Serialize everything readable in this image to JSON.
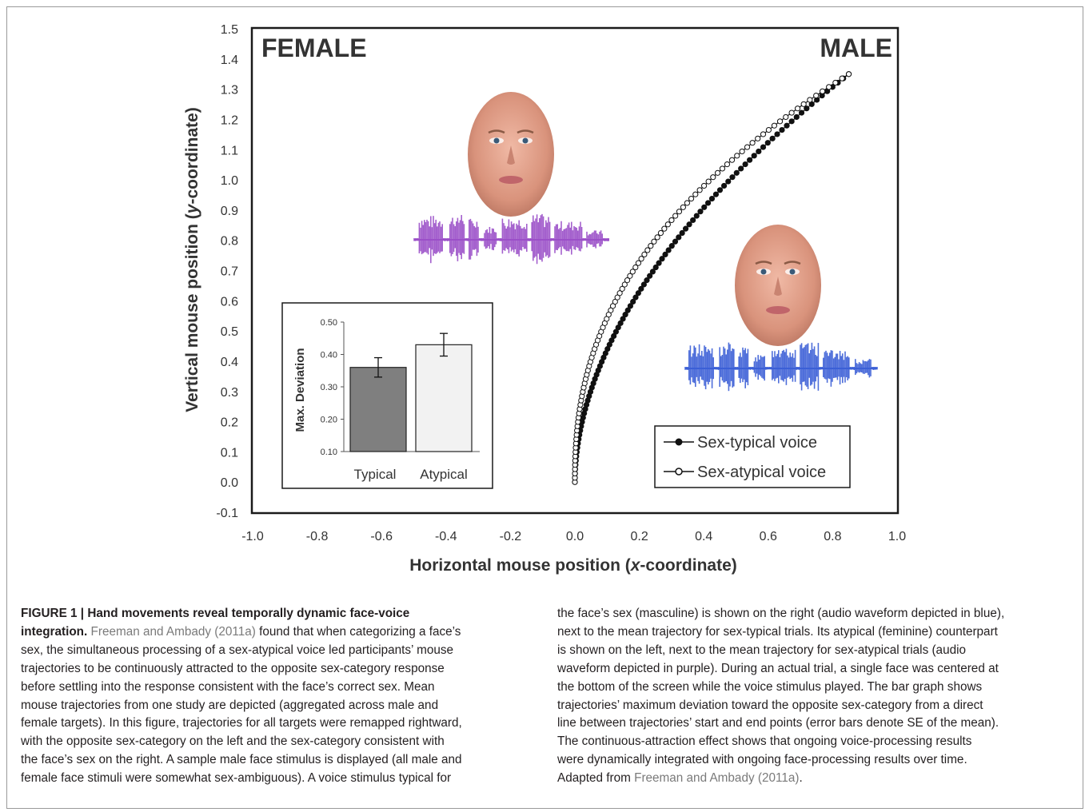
{
  "figure": {
    "label_female": "FEMALE",
    "label_male": "MALE",
    "voice_colors": {
      "female": "#9b4fc8",
      "male": "#3b5fd6"
    }
  },
  "chart_data": [
    {
      "type": "line",
      "xlabel": "Horizontal mouse position (x-coordinate)",
      "ylabel": "Vertical mouse position (y-coordinate)",
      "xlim": [
        -1.0,
        1.0
      ],
      "ylim": [
        -0.1,
        1.5
      ],
      "x_ticks": [
        "-1.0",
        "-0.8",
        "-0.6",
        "-0.4",
        "-0.2",
        "0.0",
        "0.2",
        "0.4",
        "0.6",
        "0.8",
        "1.0"
      ],
      "y_ticks": [
        "1.5",
        "1.4",
        "1.3",
        "1.2",
        "1.1",
        "1.0",
        "0.9",
        "0.8",
        "0.7",
        "0.6",
        "0.5",
        "0.4",
        "0.3",
        "0.2",
        "0.1",
        "0.0",
        "-0.1"
      ],
      "grid": false,
      "legend_position": "bottom-right",
      "series": [
        {
          "name": "Sex-typical voice",
          "marker": "filled-circle",
          "end": [
            0.85,
            1.35
          ],
          "shape_exponent": 1.9
        },
        {
          "name": "Sex-atypical voice",
          "marker": "open-circle",
          "end": [
            0.85,
            1.35
          ],
          "shape_exponent": 2.35
        }
      ]
    },
    {
      "type": "bar",
      "categories": [
        "Typical",
        "Atypical"
      ],
      "values": [
        0.36,
        0.43
      ],
      "errors": [
        0.03,
        0.035
      ],
      "ylabel": "Max. Deviation",
      "ylim": [
        0.1,
        0.5
      ],
      "y_ticks": [
        "0.50",
        "0.40",
        "0.30",
        "0.20",
        "0.10"
      ],
      "colors": [
        "#7f7f7f",
        "#f2f2f2"
      ]
    }
  ],
  "caption": {
    "title": "FIGURE 1 | Hand movements reveal temporally dynamic face-voice integration.",
    "left_lines": [
      [
        {
          "r": false,
          "t": "Freeman and Ambady (2011a)"
        },
        {
          "t": " found that when categorizing a face’s"
        }
      ],
      [
        {
          "t": "sex, the simultaneous processing of a sex-atypical voice led participants’ mouse"
        }
      ],
      [
        {
          "t": "trajectories to be continuously attracted to the opposite sex-category response"
        }
      ],
      [
        {
          "t": "before settling into the response consistent with the face’s correct sex. Mean"
        }
      ],
      [
        {
          "t": "mouse trajectories from one study are depicted (aggregated across male and"
        }
      ],
      [
        {
          "t": "female targets). In this figure, trajectories for all targets were remapped rightward,"
        }
      ],
      [
        {
          "t": "with the opposite sex-category on the left and the sex-category consistent with"
        }
      ],
      [
        {
          "t": "the face’s sex on the right. A sample male face stimulus is displayed (all male and"
        }
      ],
      [
        {
          "t": "female face stimuli were somewhat sex-ambiguous). A voice stimulus typical for"
        }
      ]
    ],
    "right_lines": [
      [
        {
          "t": "the face’s sex (masculine) is shown on the right (audio waveform depicted in blue),"
        }
      ],
      [
        {
          "t": "next to the mean trajectory for sex-typical trials. Its atypical (feminine) counterpart"
        }
      ],
      [
        {
          "t": "is shown on the left, next to the mean trajectory for sex-atypical trials (audio"
        }
      ],
      [
        {
          "t": "waveform depicted in purple). During an actual trial, a single face was centered at"
        }
      ],
      [
        {
          "t": "the bottom of the screen while the voice stimulus played. The bar graph shows"
        }
      ],
      [
        {
          "t": "trajectories’ maximum deviation toward the opposite sex-category from a direct"
        }
      ],
      [
        {
          "t": "line between trajectories’ start and end points (error bars denote SE of the mean)."
        }
      ],
      [
        {
          "t": "The continuous-attraction effect shows that ongoing voice-processing results"
        }
      ],
      [
        {
          "t": "were dynamically integrated with ongoing face-processing results over time."
        }
      ],
      [
        {
          "t": "Adapted from "
        },
        {
          "r": false,
          "t": "Freeman and Ambady (2011a)"
        },
        {
          "t": "."
        }
      ]
    ]
  }
}
